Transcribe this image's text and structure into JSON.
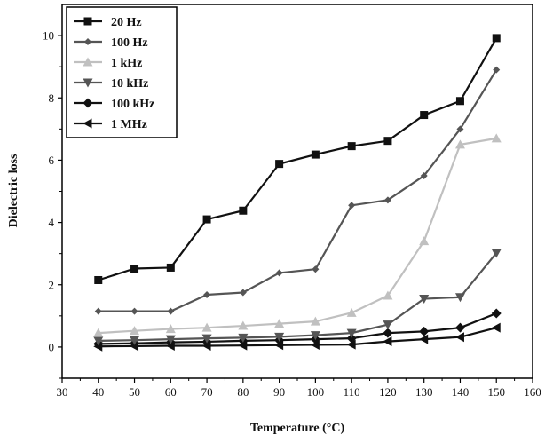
{
  "chart_data": {
    "type": "line",
    "xlabel": "Temperature (°C)",
    "ylabel": "Dielectric loss",
    "xlim": [
      30,
      160
    ],
    "ylim": [
      -1,
      11
    ],
    "x_ticks": [
      30,
      40,
      50,
      60,
      70,
      80,
      90,
      100,
      110,
      120,
      130,
      140,
      150,
      160
    ],
    "y_ticks": [
      0,
      2,
      4,
      6,
      8,
      10
    ],
    "legend_position": "top-left",
    "x": [
      40,
      50,
      60,
      70,
      80,
      90,
      100,
      110,
      120,
      130,
      140,
      150
    ],
    "series": [
      {
        "name": "20 Hz",
        "color": "#111111",
        "marker": "square",
        "values": [
          2.15,
          2.52,
          2.55,
          4.1,
          4.38,
          5.88,
          6.18,
          6.45,
          6.62,
          7.45,
          7.9,
          9.92
        ]
      },
      {
        "name": "100 Hz",
        "color": "#555555",
        "marker": "diamond-small",
        "values": [
          1.15,
          1.15,
          1.15,
          1.68,
          1.75,
          2.38,
          2.5,
          4.55,
          4.72,
          5.5,
          7.0,
          8.9
        ]
      },
      {
        "name": "1 kHz",
        "color": "#c0c0c0",
        "marker": "triangle-up",
        "values": [
          0.45,
          0.52,
          0.58,
          0.62,
          0.68,
          0.75,
          0.82,
          1.1,
          1.65,
          3.4,
          6.5,
          6.7
        ]
      },
      {
        "name": "10 kHz",
        "color": "#555555",
        "marker": "triangle-down",
        "values": [
          0.2,
          0.22,
          0.25,
          0.28,
          0.3,
          0.33,
          0.38,
          0.45,
          0.72,
          1.55,
          1.6,
          3.02
        ]
      },
      {
        "name": "100 kHz",
        "color": "#111111",
        "marker": "diamond",
        "values": [
          0.1,
          0.12,
          0.15,
          0.17,
          0.2,
          0.22,
          0.25,
          0.28,
          0.45,
          0.5,
          0.62,
          1.08
        ]
      },
      {
        "name": "1 MHz",
        "color": "#111111",
        "marker": "triangle-left",
        "values": [
          0.02,
          0.03,
          0.04,
          0.04,
          0.05,
          0.06,
          0.07,
          0.08,
          0.18,
          0.25,
          0.32,
          0.62
        ]
      }
    ]
  }
}
